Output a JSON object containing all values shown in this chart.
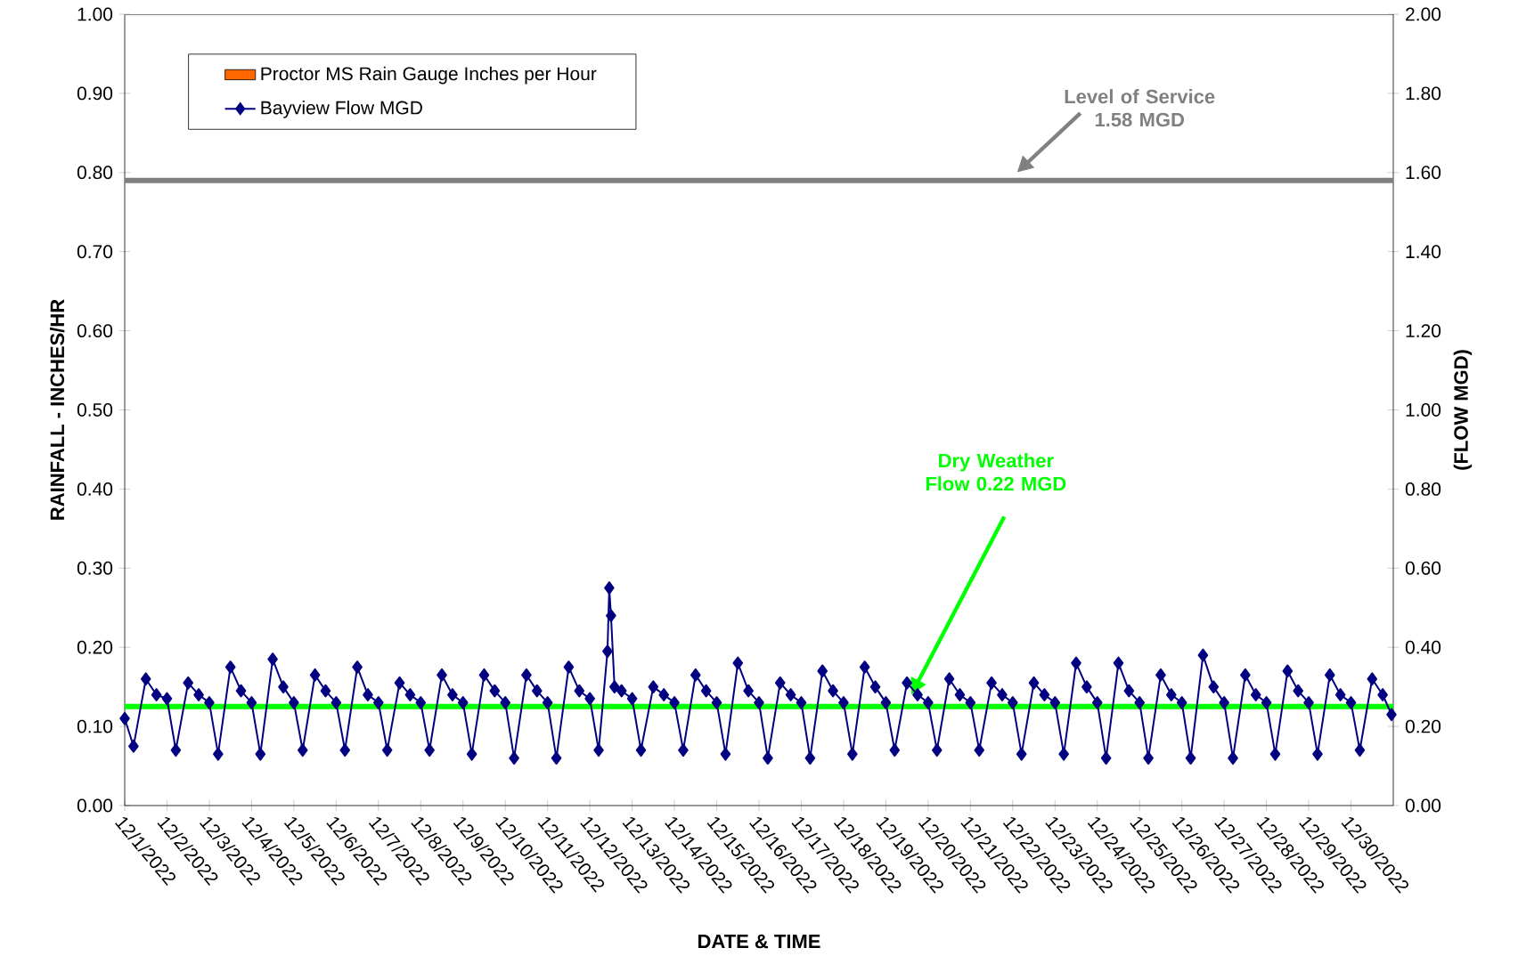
{
  "chart_data": {
    "type": "line",
    "xlabel": "DATE & TIME",
    "ylabel": "RAINFALL - INCHES/HR",
    "y2label": "(FLOW MGD)",
    "xlim": [
      "2022-12-01",
      "2022-12-31"
    ],
    "xticks": [
      {
        "value": "2022-12-01",
        "label": "12/1/2022"
      },
      {
        "value": "2022-12-02",
        "label": "12/2/2022"
      },
      {
        "value": "2022-12-03",
        "label": "12/3/2022"
      },
      {
        "value": "2022-12-04",
        "label": "12/4/2022"
      },
      {
        "value": "2022-12-05",
        "label": "12/5/2022"
      },
      {
        "value": "2022-12-06",
        "label": "12/6/2022"
      },
      {
        "value": "2022-12-07",
        "label": "12/7/2022"
      },
      {
        "value": "2022-12-08",
        "label": "12/8/2022"
      },
      {
        "value": "2022-12-09",
        "label": "12/9/2022"
      },
      {
        "value": "2022-12-10",
        "label": "12/10/2022"
      },
      {
        "value": "2022-12-11",
        "label": "12/11/2022"
      },
      {
        "value": "2022-12-12",
        "label": "12/12/2022"
      },
      {
        "value": "2022-12-13",
        "label": "12/13/2022"
      },
      {
        "value": "2022-12-14",
        "label": "12/14/2022"
      },
      {
        "value": "2022-12-15",
        "label": "12/15/2022"
      },
      {
        "value": "2022-12-16",
        "label": "12/16/2022"
      },
      {
        "value": "2022-12-17",
        "label": "12/17/2022"
      },
      {
        "value": "2022-12-18",
        "label": "12/18/2022"
      },
      {
        "value": "2022-12-19",
        "label": "12/19/2022"
      },
      {
        "value": "2022-12-20",
        "label": "12/20/2022"
      },
      {
        "value": "2022-12-21",
        "label": "12/21/2022"
      },
      {
        "value": "2022-12-22",
        "label": "12/22/2022"
      },
      {
        "value": "2022-12-23",
        "label": "12/23/2022"
      },
      {
        "value": "2022-12-24",
        "label": "12/24/2022"
      },
      {
        "value": "2022-12-25",
        "label": "12/25/2022"
      },
      {
        "value": "2022-12-26",
        "label": "12/26/2022"
      },
      {
        "value": "2022-12-27",
        "label": "12/27/2022"
      },
      {
        "value": "2022-12-28",
        "label": "12/28/2022"
      },
      {
        "value": "2022-12-29",
        "label": "12/29/2022"
      },
      {
        "value": "2022-12-30",
        "label": "12/30/2022"
      }
    ],
    "ylim": [
      0,
      1
    ],
    "yticks": [
      {
        "value": 0,
        "label": "0.00"
      },
      {
        "value": 0.1,
        "label": "0.10"
      },
      {
        "value": 0.2,
        "label": "0.20"
      },
      {
        "value": 0.3,
        "label": "0.30"
      },
      {
        "value": 0.4,
        "label": "0.40"
      },
      {
        "value": 0.5,
        "label": "0.50"
      },
      {
        "value": 0.6,
        "label": "0.60"
      },
      {
        "value": 0.7,
        "label": "0.70"
      },
      {
        "value": 0.8,
        "label": "0.80"
      },
      {
        "value": 0.9,
        "label": "0.90"
      },
      {
        "value": 1,
        "label": "1.00"
      }
    ],
    "y2lim": [
      0,
      2
    ],
    "y2ticks": [
      {
        "value": 0,
        "label": "0.00"
      },
      {
        "value": 0.2,
        "label": "0.20"
      },
      {
        "value": 0.4,
        "label": "0.40"
      },
      {
        "value": 0.6,
        "label": "0.60"
      },
      {
        "value": 0.8,
        "label": "0.80"
      },
      {
        "value": 1,
        "label": "1.00"
      },
      {
        "value": 1.2,
        "label": "1.20"
      },
      {
        "value": 1.4,
        "label": "1.40"
      },
      {
        "value": 1.6,
        "label": "1.60"
      },
      {
        "value": 1.8,
        "label": "1.80"
      },
      {
        "value": 2,
        "label": "2.00"
      }
    ],
    "legend": "top left",
    "grid": false,
    "ref_lines": [
      {
        "axis": "y2",
        "value": 1.58,
        "label": "Level of Service 1.58 MGD",
        "color": "#808080"
      },
      {
        "axis": "y2",
        "value": 0.25,
        "label": "Dry Weather Flow 0.22 MGD",
        "color": "#00ff00"
      }
    ],
    "series": [
      {
        "name": "Proctor MS Rain Gauge Inches per Hour",
        "type": "bar",
        "color": "#ff6600",
        "x": [
          "2022-12-01",
          "2022-12-02",
          "2022-12-03",
          "2022-12-04",
          "2022-12-05",
          "2022-12-06",
          "2022-12-07",
          "2022-12-08",
          "2022-12-09",
          "2022-12-10",
          "2022-12-11",
          "2022-12-12",
          "2022-12-13",
          "2022-12-14",
          "2022-12-15",
          "2022-12-16",
          "2022-12-17",
          "2022-12-18",
          "2022-12-19",
          "2022-12-20",
          "2022-12-21",
          "2022-12-22",
          "2022-12-23",
          "2022-12-24",
          "2022-12-25",
          "2022-12-26",
          "2022-12-27",
          "2022-12-28",
          "2022-12-29",
          "2022-12-30"
        ],
        "values": [
          0,
          0,
          0,
          0,
          0,
          0,
          0,
          0,
          0,
          0,
          0,
          0,
          0,
          0,
          0,
          0,
          0,
          0,
          0,
          0,
          0,
          0,
          0,
          0,
          0,
          0,
          0,
          0,
          0,
          0
        ]
      },
      {
        "name": "Bayview Flow MGD",
        "axis": "y2",
        "color": "#000080",
        "marker": "diamond",
        "line_style": "solid",
        "x": [
          "2022-12-01T00:00",
          "2022-12-01T05:00",
          "2022-12-01T12:00",
          "2022-12-01T18:00",
          "2022-12-02T00:00",
          "2022-12-02T05:00",
          "2022-12-02T12:00",
          "2022-12-02T18:00",
          "2022-12-03T00:00",
          "2022-12-03T05:00",
          "2022-12-03T12:00",
          "2022-12-03T18:00",
          "2022-12-04T00:00",
          "2022-12-04T05:00",
          "2022-12-04T12:00",
          "2022-12-04T18:00",
          "2022-12-05T00:00",
          "2022-12-05T05:00",
          "2022-12-05T12:00",
          "2022-12-05T18:00",
          "2022-12-06T00:00",
          "2022-12-06T05:00",
          "2022-12-06T12:00",
          "2022-12-06T18:00",
          "2022-12-07T00:00",
          "2022-12-07T05:00",
          "2022-12-07T12:00",
          "2022-12-07T18:00",
          "2022-12-08T00:00",
          "2022-12-08T05:00",
          "2022-12-08T12:00",
          "2022-12-08T18:00",
          "2022-12-09T00:00",
          "2022-12-09T05:00",
          "2022-12-09T12:00",
          "2022-12-09T18:00",
          "2022-12-10T00:00",
          "2022-12-10T05:00",
          "2022-12-10T12:00",
          "2022-12-10T18:00",
          "2022-12-11T00:00",
          "2022-12-11T05:00",
          "2022-12-11T12:00",
          "2022-12-11T18:00",
          "2022-12-12T00:00",
          "2022-12-12T05:00",
          "2022-12-12T10:00",
          "2022-12-12T11:00",
          "2022-12-12T12:00",
          "2022-12-12T14:00",
          "2022-12-12T18:00",
          "2022-12-13T00:00",
          "2022-12-13T05:00",
          "2022-12-13T12:00",
          "2022-12-13T18:00",
          "2022-12-14T00:00",
          "2022-12-14T05:00",
          "2022-12-14T12:00",
          "2022-12-14T18:00",
          "2022-12-15T00:00",
          "2022-12-15T05:00",
          "2022-12-15T12:00",
          "2022-12-15T18:00",
          "2022-12-16T00:00",
          "2022-12-16T05:00",
          "2022-12-16T12:00",
          "2022-12-16T18:00",
          "2022-12-17T00:00",
          "2022-12-17T05:00",
          "2022-12-17T12:00",
          "2022-12-17T18:00",
          "2022-12-18T00:00",
          "2022-12-18T05:00",
          "2022-12-18T12:00",
          "2022-12-18T18:00",
          "2022-12-19T00:00",
          "2022-12-19T05:00",
          "2022-12-19T12:00",
          "2022-12-19T18:00",
          "2022-12-20T00:00",
          "2022-12-20T05:00",
          "2022-12-20T12:00",
          "2022-12-20T18:00",
          "2022-12-21T00:00",
          "2022-12-21T05:00",
          "2022-12-21T12:00",
          "2022-12-21T18:00",
          "2022-12-22T00:00",
          "2022-12-22T05:00",
          "2022-12-22T12:00",
          "2022-12-22T18:00",
          "2022-12-23T00:00",
          "2022-12-23T05:00",
          "2022-12-23T12:00",
          "2022-12-23T18:00",
          "2022-12-24T00:00",
          "2022-12-24T05:00",
          "2022-12-24T12:00",
          "2022-12-24T18:00",
          "2022-12-25T00:00",
          "2022-12-25T05:00",
          "2022-12-25T12:00",
          "2022-12-25T18:00",
          "2022-12-26T00:00",
          "2022-12-26T05:00",
          "2022-12-26T12:00",
          "2022-12-26T18:00",
          "2022-12-27T00:00",
          "2022-12-27T05:00",
          "2022-12-27T12:00",
          "2022-12-27T18:00",
          "2022-12-28T00:00",
          "2022-12-28T05:00",
          "2022-12-28T12:00",
          "2022-12-28T18:00",
          "2022-12-29T00:00",
          "2022-12-29T05:00",
          "2022-12-29T12:00",
          "2022-12-29T18:00",
          "2022-12-30T00:00",
          "2022-12-30T05:00",
          "2022-12-30T12:00",
          "2022-12-30T18:00",
          "2022-12-30T23:00"
        ],
        "values": [
          0.22,
          0.15,
          0.32,
          0.28,
          0.27,
          0.14,
          0.31,
          0.28,
          0.26,
          0.13,
          0.35,
          0.29,
          0.26,
          0.13,
          0.37,
          0.3,
          0.26,
          0.14,
          0.33,
          0.29,
          0.26,
          0.14,
          0.35,
          0.28,
          0.26,
          0.14,
          0.31,
          0.28,
          0.26,
          0.14,
          0.33,
          0.28,
          0.26,
          0.13,
          0.33,
          0.29,
          0.26,
          0.12,
          0.33,
          0.29,
          0.26,
          0.12,
          0.35,
          0.29,
          0.27,
          0.14,
          0.39,
          0.55,
          0.48,
          0.3,
          0.29,
          0.27,
          0.14,
          0.3,
          0.28,
          0.26,
          0.14,
          0.33,
          0.29,
          0.26,
          0.13,
          0.36,
          0.29,
          0.26,
          0.12,
          0.31,
          0.28,
          0.26,
          0.12,
          0.34,
          0.29,
          0.26,
          0.13,
          0.35,
          0.3,
          0.26,
          0.14,
          0.31,
          0.28,
          0.26,
          0.14,
          0.32,
          0.28,
          0.26,
          0.14,
          0.31,
          0.28,
          0.26,
          0.13,
          0.31,
          0.28,
          0.26,
          0.13,
          0.36,
          0.3,
          0.26,
          0.12,
          0.36,
          0.29,
          0.26,
          0.12,
          0.33,
          0.28,
          0.26,
          0.12,
          0.38,
          0.3,
          0.26,
          0.12,
          0.33,
          0.28,
          0.26,
          0.13,
          0.34,
          0.29,
          0.26,
          0.13,
          0.33,
          0.28,
          0.26,
          0.14,
          0.32,
          0.28,
          0.23
        ]
      }
    ]
  }
}
